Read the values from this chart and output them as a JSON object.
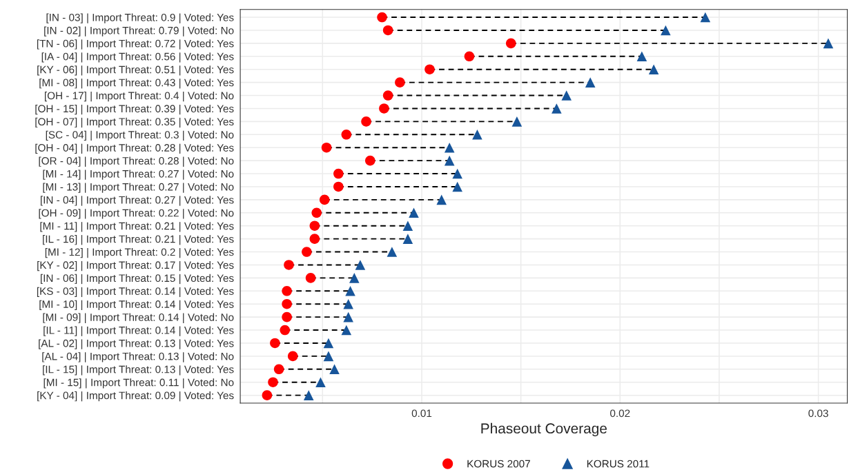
{
  "chart_data": {
    "type": "scatter",
    "orientation": "horizontal",
    "xlabel": "Phaseout Coverage",
    "categories": [
      "[IN - 03] | Import Threat: 0.9 | Voted: Yes",
      "[IN - 02] | Import Threat: 0.79 | Voted: No",
      "[TN - 06] | Import Threat: 0.72 | Voted: Yes",
      "[IA - 04] | Import Threat: 0.56 | Voted: Yes",
      "[KY - 06] | Import Threat: 0.51 | Voted: Yes",
      "[MI - 08] | Import Threat: 0.43 | Voted: Yes",
      "[OH - 17] | Import Threat: 0.4 | Voted: No",
      "[OH - 15] | Import Threat: 0.39 | Voted: Yes",
      "[OH - 07] | Import Threat: 0.35 | Voted: Yes",
      "[SC - 04] | Import Threat: 0.3 | Voted: No",
      "[OH - 04] | Import Threat: 0.28 | Voted: Yes",
      "[OR - 04] | Import Threat: 0.28 | Voted: No",
      "[MI - 14] | Import Threat: 0.27 | Voted: No",
      "[MI - 13] | Import Threat: 0.27 | Voted: No",
      "[IN - 04] | Import Threat: 0.27 | Voted: Yes",
      "[OH - 09] | Import Threat: 0.22 | Voted: No",
      "[MI - 11] | Import Threat: 0.21 | Voted: Yes",
      "[IL - 16] | Import Threat: 0.21 | Voted: Yes",
      "[MI - 12] | Import Threat: 0.2 | Voted: Yes",
      "[KY - 02] | Import Threat: 0.17 | Voted: Yes",
      "[IN - 06] | Import Threat: 0.15 | Voted: Yes",
      "[KS - 03] | Import Threat: 0.14 | Voted: Yes",
      "[MI - 10] | Import Threat: 0.14 | Voted: Yes",
      "[MI - 09] | Import Threat: 0.14 | Voted: No",
      "[IL - 11] | Import Threat: 0.14 | Voted: Yes",
      "[AL - 02] | Import Threat: 0.13 | Voted: Yes",
      "[AL - 04] | Import Threat: 0.13 | Voted: No",
      "[IL - 15] | Import Threat: 0.13 | Voted: Yes",
      "[MI - 15] | Import Threat: 0.11 | Voted: No",
      "[KY - 04] | Import Threat: 0.09 | Voted: Yes"
    ],
    "series": [
      {
        "name": "KORUS 2007",
        "color": "#ff0000",
        "marker": "circle",
        "values": [
          0.008,
          0.0083,
          0.0145,
          0.0124,
          0.0104,
          0.0089,
          0.0083,
          0.0081,
          0.0072,
          0.0062,
          0.0052,
          0.0074,
          0.0058,
          0.0058,
          0.0051,
          0.0047,
          0.0046,
          0.0046,
          0.0042,
          0.0033,
          0.0044,
          0.0032,
          0.0032,
          0.0032,
          0.0031,
          0.0026,
          0.0035,
          0.0028,
          0.0025,
          0.0022
        ]
      },
      {
        "name": "KORUS 2011",
        "color": "#17559a",
        "marker": "triangle",
        "values": [
          0.0243,
          0.0223,
          0.0305,
          0.0211,
          0.0217,
          0.0185,
          0.0173,
          0.0168,
          0.0148,
          0.0128,
          0.0114,
          0.0114,
          0.0118,
          0.0118,
          0.011,
          0.0096,
          0.0093,
          0.0093,
          0.0085,
          0.0069,
          0.0066,
          0.0064,
          0.0063,
          0.0063,
          0.0062,
          0.0053,
          0.0053,
          0.0056,
          0.0049,
          0.0043
        ]
      }
    ],
    "xlim": [
      0.00085,
      0.03146
    ],
    "xticks": [
      {
        "value": 0.005,
        "label": null
      },
      0.01,
      {
        "value": 0.015,
        "label": null
      },
      0.02,
      {
        "value": 0.025,
        "label": null
      },
      0.03
    ],
    "grid": true,
    "legend": "bottom",
    "line_style": "dashed"
  }
}
